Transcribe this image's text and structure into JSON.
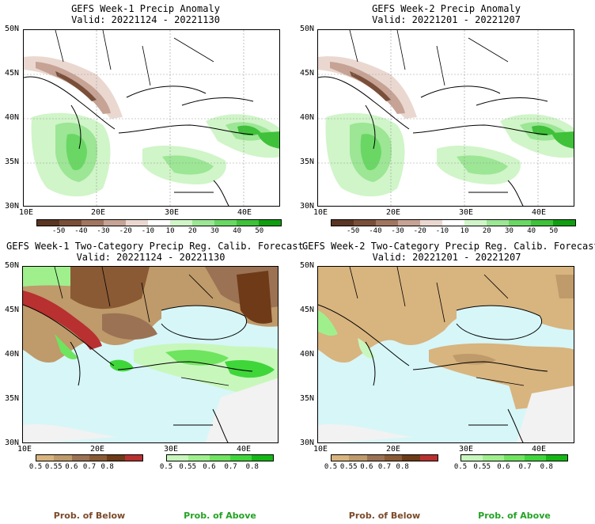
{
  "panels": [
    {
      "title1": "GEFS Week-1 Precip Anomaly",
      "title2": "Valid: 20221124 - 20221130"
    },
    {
      "title1": "GEFS Week-2 Precip Anomaly",
      "title2": "Valid: 20221201 - 20221207"
    },
    {
      "title1": "GEFS Week-1 Two-Category Precip Reg. Calib. Forecast",
      "title2": "Valid: 20221124 - 20221130"
    },
    {
      "title1": "GEFS Week-2 Two-Category Precip Reg. Calib. Forecast",
      "title2": "Valid: 20221201 - 20221207"
    }
  ],
  "axes": {
    "lat_labels": [
      "50N",
      "45N",
      "40N",
      "35N",
      "30N"
    ],
    "lon_labels": [
      "10E",
      "20E",
      "30E",
      "40E"
    ]
  },
  "anomaly_colorbar": {
    "labels": [
      "-50",
      "-40",
      "-30",
      "-20",
      "-10",
      "10",
      "20",
      "30",
      "40",
      "50"
    ],
    "colors": [
      "#5a3524",
      "#7a4f3a",
      "#a07661",
      "#c6a395",
      "#ead8d0",
      "#ffffff",
      "#d0f5c8",
      "#9ce695",
      "#6ad765",
      "#3fc13a",
      "#0f9e10"
    ]
  },
  "prob_below": {
    "labels": [
      "0.5",
      "0.55",
      "0.6",
      "0.7",
      "0.8"
    ],
    "colors": [
      "#d8b47f",
      "#bf9a6a",
      "#9b7254",
      "#8a5a35",
      "#6e3a17",
      "#b83030"
    ],
    "caption": "Prob. of Below"
  },
  "prob_above": {
    "labels": [
      "0.5",
      "0.55",
      "0.6",
      "0.7",
      "0.8"
    ],
    "colors": [
      "#c8f7bc",
      "#9ff08d",
      "#6fe45f",
      "#3fd63a",
      "#14b814"
    ],
    "caption": "Prob. of Above"
  },
  "colors": {
    "sea": "#d7f6f8",
    "land_light": "#f2f2f2",
    "above_text": "#23a323",
    "below_text": "#7a4a2a"
  }
}
